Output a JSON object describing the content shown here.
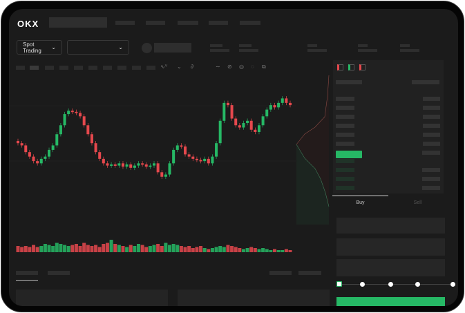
{
  "header": {
    "logo": "OKX"
  },
  "market": {
    "mode_label": "Spot Trading",
    "pair_select_value": ""
  },
  "trade": {
    "tabs": [
      "Buy",
      "Sell"
    ],
    "active_tab": "Buy",
    "leverage_steps": 5,
    "selected_step": 0
  },
  "colors": {
    "up": "#26b865",
    "down": "#e5484d",
    "background": "#1b1b1b",
    "accent": "#26b865"
  },
  "icons": {
    "order_book_views": [
      "both-sides-icon",
      "bids-only-icon",
      "asks-only-icon"
    ],
    "tools": [
      "indicator-icon",
      "chart-type-icon",
      "drawing-icon",
      "pen-icon",
      "measure-icon",
      "settings-icon",
      "fullscreen-icon"
    ]
  },
  "chart_data": {
    "type": "candlestick",
    "closes": [
      40,
      38,
      32,
      28,
      24,
      22,
      26,
      28,
      34,
      38,
      48,
      56,
      66,
      69,
      68,
      67,
      64,
      56,
      48,
      40,
      32,
      26,
      22,
      20,
      21,
      20,
      22,
      19,
      21,
      18,
      20,
      22,
      21,
      19,
      20,
      22,
      14,
      10,
      12,
      22,
      34,
      38,
      37,
      30,
      28,
      26,
      25,
      24,
      26,
      22,
      28,
      40,
      60,
      76,
      74,
      62,
      56,
      54,
      58,
      60,
      52,
      50,
      56,
      64,
      70,
      74,
      72,
      76,
      80,
      76,
      74
    ],
    "volumes": [
      6,
      5,
      6,
      5,
      7,
      5,
      6,
      8,
      7,
      6,
      9,
      8,
      7,
      6,
      7,
      8,
      6,
      9,
      7,
      6,
      7,
      5,
      8,
      9,
      12,
      8,
      7,
      6,
      5,
      7,
      6,
      8,
      7,
      5,
      6,
      7,
      8,
      6,
      9,
      7,
      8,
      7,
      6,
      5,
      6,
      4,
      5,
      6,
      4,
      3,
      4,
      5,
      6,
      5,
      7,
      6,
      5,
      4,
      3,
      4,
      5,
      4,
      3,
      4,
      3,
      2,
      3,
      2,
      2,
      3,
      2
    ]
  }
}
